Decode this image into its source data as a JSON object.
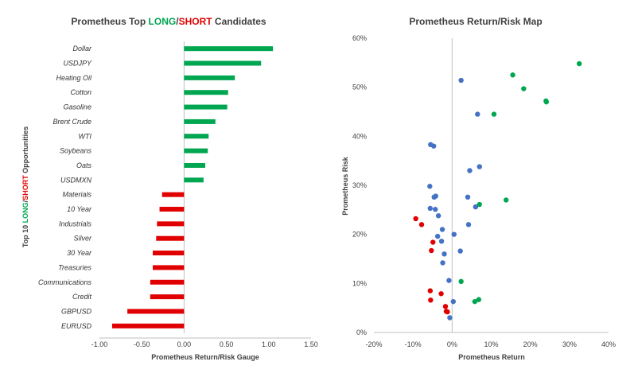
{
  "colors": {
    "long": "#00a650",
    "short": "#e00000",
    "neutral": "#4472c4",
    "text": "#404040",
    "axis": "#bfbfbf"
  },
  "chart_data": [
    {
      "type": "bar",
      "orientation": "horizontal",
      "title_parts": [
        "Prometheus Top ",
        "LONG",
        "/",
        "SHORT",
        " Candidates"
      ],
      "xlabel": "Prometheus Return/Risk Gauge",
      "ylabel_parts": [
        "Top 10 ",
        "LONG",
        "/",
        "SHORT",
        " Opportunities"
      ],
      "xlim": [
        -1.0,
        1.5
      ],
      "xticks": [
        "-1.00",
        "-0.50",
        "0.00",
        "0.50",
        "1.00",
        "1.50"
      ],
      "grid": false,
      "categories": [
        "Dollar",
        "USDJPY",
        "Heating Oil",
        "Cotton",
        "Gasoline",
        "Brent Crude",
        "WTI",
        "Soybeans",
        "Oats",
        "USDMXN",
        "Materials",
        "10 Year",
        "Industrials",
        "Silver",
        "30 Year",
        "Treasuries",
        "Communications",
        "Credit",
        "GBPUSD",
        "EURUSD"
      ],
      "values": [
        1.05,
        0.91,
        0.6,
        0.52,
        0.51,
        0.37,
        0.29,
        0.28,
        0.25,
        0.23,
        -0.26,
        -0.29,
        -0.32,
        -0.33,
        -0.37,
        -0.37,
        -0.4,
        -0.4,
        -0.67,
        -0.85
      ]
    },
    {
      "type": "scatter",
      "title": "Prometheus Return/Risk Map",
      "xlabel": "Prometheus Return",
      "ylabel": "Prometheus Risk",
      "xlim": [
        -0.2,
        0.4
      ],
      "ylim": [
        0,
        0.6
      ],
      "xticks": [
        "-20%",
        "-10%",
        "0%",
        "10%",
        "20%",
        "30%",
        "40%"
      ],
      "yticks": [
        "0%",
        "10%",
        "20%",
        "30%",
        "40%",
        "50%",
        "60%"
      ],
      "grid": false,
      "series": [
        {
          "group": "long",
          "points": [
            [
              0.325,
              0.548
            ],
            [
              0.155,
              0.525
            ],
            [
              0.183,
              0.497
            ],
            [
              0.24,
              0.472
            ],
            [
              0.241,
              0.47
            ],
            [
              0.107,
              0.445
            ],
            [
              0.138,
              0.27
            ],
            [
              0.07,
              0.261
            ],
            [
              0.023,
              0.104
            ],
            [
              0.068,
              0.067
            ],
            [
              0.058,
              0.063
            ]
          ]
        },
        {
          "group": "neutral",
          "points": [
            [
              0.023,
              0.514
            ],
            [
              0.065,
              0.445
            ],
            [
              -0.055,
              0.383
            ],
            [
              -0.047,
              0.38
            ],
            [
              0.07,
              0.338
            ],
            [
              0.045,
              0.33
            ],
            [
              -0.057,
              0.298
            ],
            [
              0.04,
              0.276
            ],
            [
              -0.046,
              0.276
            ],
            [
              -0.042,
              0.278
            ],
            [
              -0.056,
              0.253
            ],
            [
              -0.043,
              0.251
            ],
            [
              0.06,
              0.256
            ],
            [
              -0.035,
              0.238
            ],
            [
              0.042,
              0.22
            ],
            [
              -0.025,
              0.21
            ],
            [
              0.005,
              0.2
            ],
            [
              -0.037,
              0.196
            ],
            [
              -0.027,
              0.186
            ],
            [
              0.021,
              0.166
            ],
            [
              -0.02,
              0.16
            ],
            [
              -0.024,
              0.142
            ],
            [
              -0.008,
              0.106
            ],
            [
              0.003,
              0.063
            ],
            [
              -0.006,
              0.03
            ]
          ]
        },
        {
          "group": "short",
          "points": [
            [
              -0.093,
              0.232
            ],
            [
              -0.078,
              0.22
            ],
            [
              -0.049,
              0.184
            ],
            [
              -0.053,
              0.167
            ],
            [
              -0.056,
              0.085
            ],
            [
              -0.028,
              0.079
            ],
            [
              -0.055,
              0.066
            ],
            [
              -0.017,
              0.053
            ],
            [
              -0.015,
              0.043
            ],
            [
              -0.012,
              0.042
            ]
          ]
        }
      ]
    }
  ]
}
